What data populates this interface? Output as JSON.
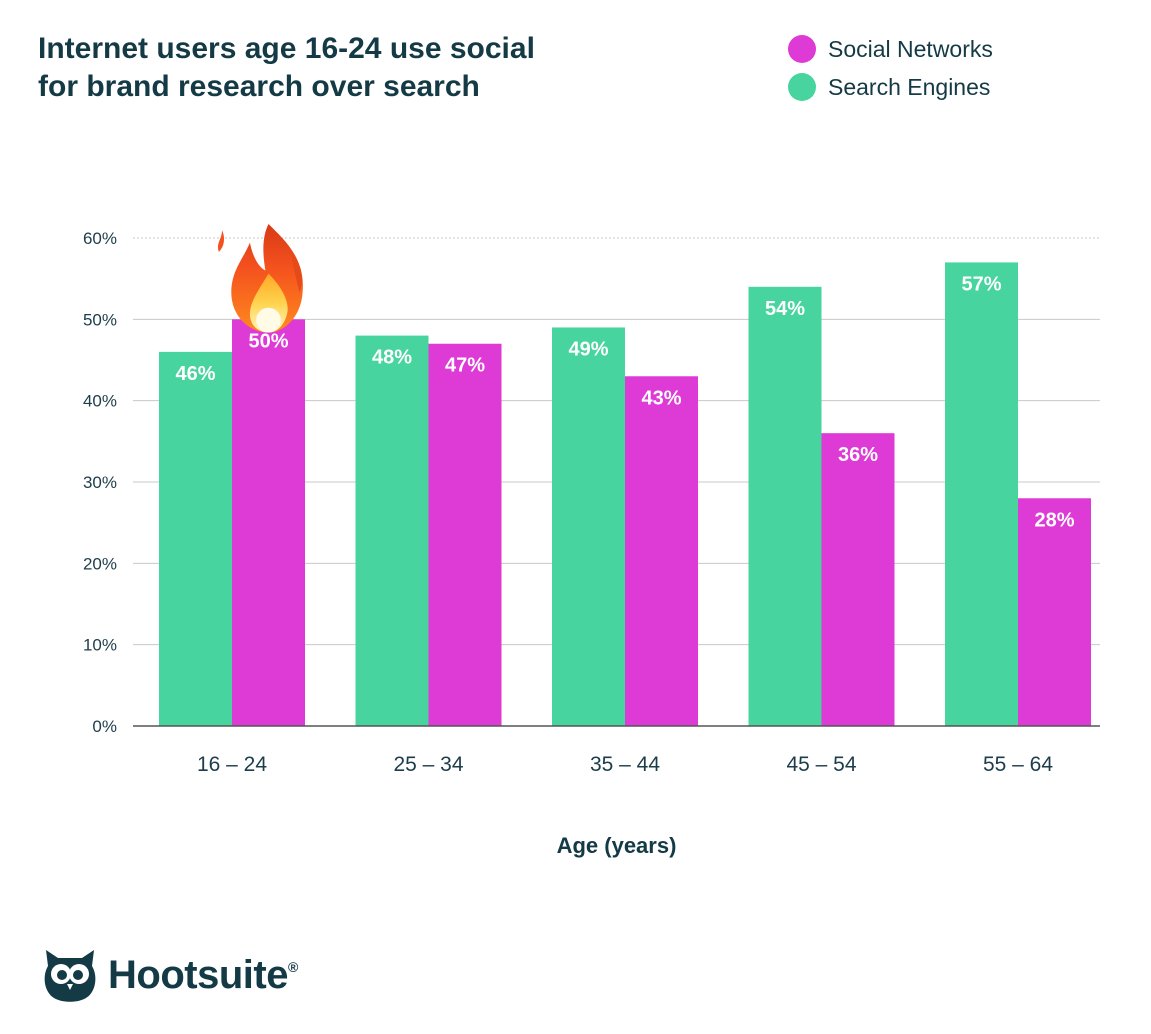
{
  "chart_data": {
    "type": "bar",
    "title_lines": [
      "Internet users age 16-24 use social",
      "for brand research over search"
    ],
    "categories": [
      "16 – 24",
      "25 – 34",
      "35 – 44",
      "45 – 54",
      "55 – 64"
    ],
    "series": [
      {
        "name": "Search Engines",
        "color": "#48d49e",
        "values": [
          46,
          48,
          49,
          54,
          57
        ],
        "labels": [
          "46%",
          "48%",
          "49%",
          "54%",
          "57%"
        ]
      },
      {
        "name": "Social Networks",
        "color": "#dd3ad6",
        "values": [
          50,
          47,
          43,
          36,
          28
        ],
        "labels": [
          "50%",
          "47%",
          "43%",
          "36%",
          "28%"
        ]
      }
    ],
    "legend_order": [
      "Social Networks",
      "Search Engines"
    ],
    "xlabel": "Age (years)",
    "ylabel": "",
    "ylim": [
      0,
      60
    ],
    "yticks": [
      0,
      10,
      20,
      30,
      40,
      50,
      60
    ],
    "ytick_labels": [
      "0%",
      "10%",
      "20%",
      "30%",
      "40%",
      "50%",
      "60%"
    ],
    "grid": true,
    "legend_position": "top-right",
    "annotation": {
      "icon": "fire-icon",
      "category": "16 – 24",
      "series": "Social Networks"
    }
  },
  "brand": {
    "name": "Hootsuite",
    "mark": "®"
  }
}
